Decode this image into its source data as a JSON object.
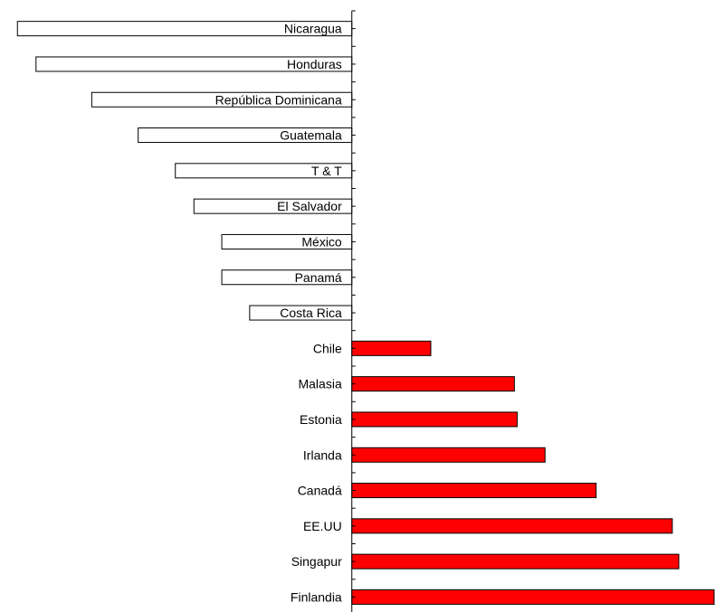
{
  "chart_data": {
    "type": "bar",
    "orientation": "horizontal",
    "categories": [
      "Nicaragua",
      "Honduras",
      "República Dominicana",
      "Guatemala",
      "T & T",
      "El Salvador",
      "México",
      "Panamá",
      "Costa Rica",
      "Chile",
      "Malasia",
      "Estonia",
      "Irlanda",
      "Canadá",
      "EE.UU",
      "Singapur",
      "Finlandia"
    ],
    "values": [
      -3.6,
      -3.4,
      -2.8,
      -2.3,
      -1.9,
      -1.7,
      -1.4,
      -1.4,
      -1.1,
      0.85,
      1.75,
      1.78,
      2.08,
      2.63,
      3.45,
      3.52,
      3.9
    ],
    "xlim": [
      -3.7,
      3.9
    ],
    "title": "",
    "xlabel": "",
    "ylabel": "",
    "grid": false,
    "colors": {
      "positive": "#ff0000",
      "negative": "#ffffff",
      "border": "#000000"
    }
  }
}
